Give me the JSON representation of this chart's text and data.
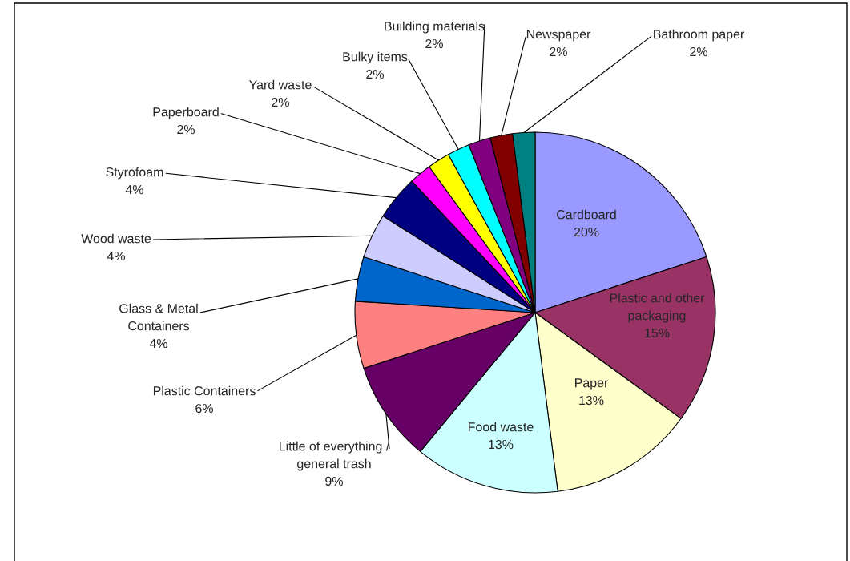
{
  "chart_data": {
    "type": "pie",
    "categories": [
      "Cardboard",
      "Plastic and other\npackaging",
      "Paper",
      "Food waste",
      "Little of everything /\ngeneral trash",
      "Plastic Containers",
      "Glass & Metal\nContainers",
      "Wood waste",
      "Styrofoam",
      "Paperboard",
      "Yard waste",
      "Bulky items",
      "Building materials",
      "Newspaper",
      "Bathroom paper"
    ],
    "values": [
      20,
      15,
      13,
      13,
      9,
      6,
      4,
      4,
      4,
      2,
      2,
      2,
      2,
      2,
      2
    ],
    "value_labels": [
      "20%",
      "15%",
      "13%",
      "13%",
      "9%",
      "6%",
      "4%",
      "4%",
      "4%",
      "2%",
      "2%",
      "2%",
      "2%",
      "2%",
      "2%"
    ],
    "colors": [
      "#9999ff",
      "#993366",
      "#ffffcc",
      "#ccffff",
      "#660066",
      "#ff8080",
      "#0066cc",
      "#ccccff",
      "#000080",
      "#ff00ff",
      "#ffff00",
      "#00ffff",
      "#800080",
      "#800000",
      "#008080"
    ]
  }
}
